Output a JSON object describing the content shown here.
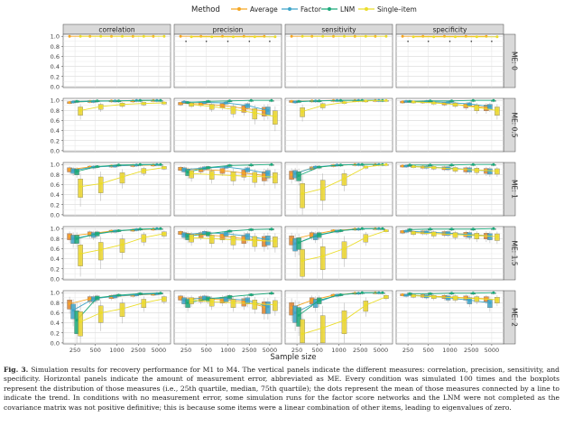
{
  "figure": {
    "legend_title": "Method",
    "methods": [
      {
        "name": "Average",
        "color": "#F5A623"
      },
      {
        "name": "Factor",
        "color": "#3DA5C9"
      },
      {
        "name": "LNM",
        "color": "#1BA97A"
      },
      {
        "name": "Single–item",
        "color": "#EBDD2B"
      }
    ],
    "box_colors": {
      "Average": "#E0842B",
      "Factor": "#3DA5C9",
      "LNM": "#1BA97A",
      "Single–item": "#EBD52B"
    },
    "column_titles": [
      "correlation",
      "precision",
      "sensitivity",
      "specificity"
    ],
    "row_labels": [
      "ME: 0",
      "ME: 0.5",
      "ME: 1",
      "ME: 1.5",
      "ME: 2"
    ],
    "y_ticks": [
      "0.0",
      "0.2",
      "0.4",
      "0.6",
      "0.8",
      "1.0"
    ],
    "x_ticks": [
      "250",
      "500",
      "1000",
      "2500",
      "5000"
    ],
    "x_axis_title": "Sample size",
    "caption_label": "Fig. 3.",
    "caption_text": "Simulation results for recovery performance for M1 to M4. The vertical panels indicate the different measures: correlation, precision, sensitivity, and specificity. Horizontal panels indicate the amount of measurement error, abbreviated as ME. Every condition was simulated 100 times and the boxplots represent the distribution of those measures (i.e., 25th quartile, median, 75th quartile); the dots represent the mean of those measures connected by a line to indicate the trend. In conditions with no measurement error, some simulation runs for the factor score networks and the LNM were not completed as the covariance matrix was not positive definitive; this is because some items were a linear combination of other items, leading to eigenvalues of zero."
  },
  "chart_data": {
    "type": "line",
    "title": "",
    "xlabel": "Sample size",
    "ylabel": "",
    "x": [
      250,
      500,
      1000,
      2500,
      5000
    ],
    "ylim": [
      0,
      1
    ],
    "facets": [
      {
        "row": "ME: 0",
        "col": "correlation",
        "series": [
          {
            "name": "Average",
            "values": [
              1.0,
              1.0,
              1.0,
              1.0,
              1.0
            ]
          },
          {
            "name": "Single–item",
            "values": [
              1.0,
              1.0,
              1.0,
              1.0,
              1.0
            ]
          }
        ]
      },
      {
        "row": "ME: 0",
        "col": "precision",
        "series": [
          {
            "name": "Average",
            "values": [
              1.0,
              1.0,
              1.0,
              1.0,
              1.0
            ]
          },
          {
            "name": "Single–item",
            "values": [
              0.99,
              0.99,
              0.99,
              0.99,
              0.99
            ]
          }
        ]
      },
      {
        "row": "ME: 0",
        "col": "sensitivity",
        "series": [
          {
            "name": "Average",
            "values": [
              1.0,
              1.0,
              1.0,
              1.0,
              1.0
            ]
          },
          {
            "name": "Single–item",
            "values": [
              1.0,
              1.0,
              1.0,
              1.0,
              1.0
            ]
          }
        ]
      },
      {
        "row": "ME: 0",
        "col": "specificity",
        "series": [
          {
            "name": "Average",
            "values": [
              1.0,
              1.0,
              1.0,
              1.0,
              1.0
            ]
          },
          {
            "name": "Single–item",
            "values": [
              0.99,
              0.99,
              0.99,
              0.99,
              0.99
            ]
          }
        ]
      },
      {
        "row": "ME: 0.5",
        "col": "correlation",
        "series": [
          {
            "name": "Average",
            "values": [
              0.96,
              0.98,
              0.99,
              0.99,
              1.0
            ]
          },
          {
            "name": "Factor",
            "values": [
              0.97,
              0.98,
              0.99,
              1.0,
              1.0
            ]
          },
          {
            "name": "LNM",
            "values": [
              0.98,
              0.99,
              0.99,
              1.0,
              1.0
            ]
          },
          {
            "name": "Single–item",
            "values": [
              0.8,
              0.88,
              0.92,
              0.94,
              0.95
            ]
          }
        ]
      },
      {
        "row": "ME: 0.5",
        "col": "precision",
        "series": [
          {
            "name": "Average",
            "values": [
              0.94,
              0.93,
              0.9,
              0.84,
              0.79
            ]
          },
          {
            "name": "Factor",
            "values": [
              0.97,
              0.96,
              0.95,
              0.9,
              0.8
            ]
          },
          {
            "name": "LNM",
            "values": [
              0.96,
              0.98,
              0.99,
              1.0,
              1.0
            ]
          },
          {
            "name": "Single–item",
            "values": [
              0.92,
              0.88,
              0.82,
              0.75,
              0.68
            ]
          }
        ]
      },
      {
        "row": "ME: 0.5",
        "col": "sensitivity",
        "series": [
          {
            "name": "Average",
            "values": [
              0.98,
              0.99,
              1.0,
              1.0,
              1.0
            ]
          },
          {
            "name": "Factor",
            "values": [
              0.97,
              0.99,
              1.0,
              1.0,
              1.0
            ]
          },
          {
            "name": "LNM",
            "values": [
              0.98,
              0.99,
              1.0,
              1.0,
              1.0
            ]
          },
          {
            "name": "Single–item",
            "values": [
              0.78,
              0.9,
              0.96,
              0.99,
              1.0
            ]
          }
        ]
      },
      {
        "row": "ME: 0.5",
        "col": "specificity",
        "series": [
          {
            "name": "Average",
            "values": [
              0.97,
              0.97,
              0.94,
              0.9,
              0.86
            ]
          },
          {
            "name": "Factor",
            "values": [
              0.98,
              0.98,
              0.96,
              0.93,
              0.88
            ]
          },
          {
            "name": "LNM",
            "values": [
              0.98,
              0.99,
              0.99,
              1.0,
              1.0
            ]
          },
          {
            "name": "Single–item",
            "values": [
              0.97,
              0.95,
              0.92,
              0.86,
              0.8
            ]
          }
        ]
      },
      {
        "row": "ME: 1",
        "col": "correlation",
        "series": [
          {
            "name": "Average",
            "values": [
              0.9,
              0.95,
              0.97,
              0.98,
              0.99
            ]
          },
          {
            "name": "Factor",
            "values": [
              0.88,
              0.95,
              0.97,
              0.99,
              1.0
            ]
          },
          {
            "name": "LNM",
            "values": [
              0.86,
              0.96,
              0.99,
              1.0,
              1.0
            ]
          },
          {
            "name": "Single–item",
            "values": [
              0.56,
              0.62,
              0.75,
              0.88,
              0.94
            ]
          }
        ]
      },
      {
        "row": "ME: 1",
        "col": "precision",
        "series": [
          {
            "name": "Average",
            "values": [
              0.92,
              0.9,
              0.88,
              0.83,
              0.78
            ]
          },
          {
            "name": "Factor",
            "values": [
              0.9,
              0.93,
              0.95,
              0.9,
              0.82
            ]
          },
          {
            "name": "LNM",
            "values": [
              0.85,
              0.94,
              0.98,
              0.99,
              1.0
            ]
          },
          {
            "name": "Single–item",
            "values": [
              0.82,
              0.8,
              0.78,
              0.76,
              0.75
            ]
          }
        ]
      },
      {
        "row": "ME: 1",
        "col": "sensitivity",
        "series": [
          {
            "name": "Average",
            "values": [
              0.8,
              0.93,
              0.98,
              1.0,
              1.0
            ]
          },
          {
            "name": "Factor",
            "values": [
              0.82,
              0.95,
              0.99,
              1.0,
              1.0
            ]
          },
          {
            "name": "LNM",
            "values": [
              0.78,
              0.95,
              0.99,
              1.0,
              1.0
            ]
          },
          {
            "name": "Single–item",
            "values": [
              0.42,
              0.52,
              0.72,
              0.95,
              1.0
            ]
          }
        ]
      },
      {
        "row": "ME: 1",
        "col": "specificity",
        "series": [
          {
            "name": "Average",
            "values": [
              0.97,
              0.95,
              0.93,
              0.9,
              0.88
            ]
          },
          {
            "name": "Factor",
            "values": [
              0.97,
              0.95,
              0.93,
              0.9,
              0.87
            ]
          },
          {
            "name": "LNM",
            "values": [
              0.99,
              0.99,
              0.99,
              1.0,
              1.0
            ]
          },
          {
            "name": "Single–item",
            "values": [
              0.96,
              0.94,
              0.91,
              0.89,
              0.87
            ]
          }
        ]
      },
      {
        "row": "ME: 1.5",
        "col": "correlation",
        "series": [
          {
            "name": "Average",
            "values": [
              0.85,
              0.9,
              0.95,
              0.97,
              0.99
            ]
          },
          {
            "name": "Factor",
            "values": [
              0.8,
              0.88,
              0.95,
              0.98,
              1.0
            ]
          },
          {
            "name": "LNM",
            "values": [
              0.8,
              0.9,
              0.96,
              0.99,
              1.0
            ]
          },
          {
            "name": "Single–item",
            "values": [
              0.5,
              0.58,
              0.68,
              0.82,
              0.9
            ]
          }
        ]
      },
      {
        "row": "ME: 1.5",
        "col": "precision",
        "series": [
          {
            "name": "Average",
            "values": [
              0.92,
              0.88,
              0.85,
              0.8,
              0.76
            ]
          },
          {
            "name": "Factor",
            "values": [
              0.88,
              0.92,
              0.9,
              0.85,
              0.78
            ]
          },
          {
            "name": "LNM",
            "values": [
              0.85,
              0.9,
              0.95,
              0.98,
              0.99
            ]
          },
          {
            "name": "Single–item",
            "values": [
              0.82,
              0.8,
              0.78,
              0.76,
              0.75
            ]
          }
        ]
      },
      {
        "row": "ME: 1.5",
        "col": "sensitivity",
        "series": [
          {
            "name": "Average",
            "values": [
              0.78,
              0.88,
              0.96,
              0.99,
              1.0
            ]
          },
          {
            "name": "Factor",
            "values": [
              0.7,
              0.85,
              0.95,
              0.99,
              1.0
            ]
          },
          {
            "name": "LNM",
            "values": [
              0.72,
              0.88,
              0.96,
              1.0,
              1.0
            ]
          },
          {
            "name": "Single–item",
            "values": [
              0.36,
              0.45,
              0.6,
              0.82,
              0.96
            ]
          }
        ]
      },
      {
        "row": "ME: 1.5",
        "col": "specificity",
        "series": [
          {
            "name": "Average",
            "values": [
              0.94,
              0.93,
              0.91,
              0.89,
              0.86
            ]
          },
          {
            "name": "Factor",
            "values": [
              0.95,
              0.93,
              0.91,
              0.88,
              0.85
            ]
          },
          {
            "name": "LNM",
            "values": [
              0.98,
              0.99,
              0.99,
              0.99,
              1.0
            ]
          },
          {
            "name": "Single–item",
            "values": [
              0.92,
              0.9,
              0.88,
              0.86,
              0.84
            ]
          }
        ]
      },
      {
        "row": "ME: 2",
        "col": "correlation",
        "series": [
          {
            "name": "Average",
            "values": [
              0.78,
              0.88,
              0.92,
              0.95,
              0.97
            ]
          },
          {
            "name": "Factor",
            "values": [
              0.65,
              0.88,
              0.93,
              0.96,
              0.98
            ]
          },
          {
            "name": "LNM",
            "values": [
              0.45,
              0.9,
              0.95,
              0.98,
              0.99
            ]
          },
          {
            "name": "Single–item",
            "values": [
              0.42,
              0.6,
              0.68,
              0.8,
              0.88
            ]
          }
        ]
      },
      {
        "row": "ME: 2",
        "col": "precision",
        "series": [
          {
            "name": "Average",
            "values": [
              0.9,
              0.88,
              0.86,
              0.82,
              0.72
            ]
          },
          {
            "name": "Factor",
            "values": [
              0.85,
              0.9,
              0.88,
              0.85,
              0.72
            ]
          },
          {
            "name": "LNM",
            "values": [
              0.8,
              0.88,
              0.92,
              0.96,
              0.99
            ]
          },
          {
            "name": "Single–item",
            "values": [
              0.85,
              0.82,
              0.8,
              0.78,
              0.76
            ]
          }
        ]
      },
      {
        "row": "ME: 2",
        "col": "sensitivity",
        "series": [
          {
            "name": "Average",
            "values": [
              0.7,
              0.85,
              0.95,
              0.99,
              1.0
            ]
          },
          {
            "name": "Factor",
            "values": [
              0.6,
              0.8,
              0.95,
              0.99,
              1.0
            ]
          },
          {
            "name": "LNM",
            "values": [
              0.55,
              0.85,
              0.96,
              1.0,
              1.0
            ]
          },
          {
            "name": "Single–item",
            "values": [
              0.18,
              0.3,
              0.45,
              0.75,
              0.92
            ]
          }
        ]
      },
      {
        "row": "ME: 2",
        "col": "specificity",
        "series": [
          {
            "name": "Average",
            "values": [
              0.96,
              0.94,
              0.92,
              0.9,
              0.88
            ]
          },
          {
            "name": "Factor",
            "values": [
              0.95,
              0.93,
              0.9,
              0.85,
              0.8
            ]
          },
          {
            "name": "LNM",
            "values": [
              0.98,
              0.98,
              0.99,
              0.99,
              1.0
            ]
          },
          {
            "name": "Single–item",
            "values": [
              0.94,
              0.92,
              0.9,
              0.88,
              0.86
            ]
          }
        ]
      }
    ]
  }
}
